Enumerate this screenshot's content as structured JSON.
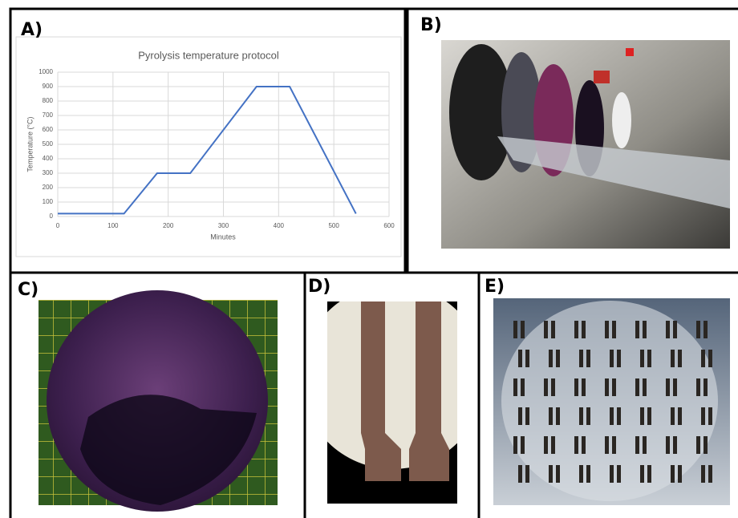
{
  "panels": [
    "A)",
    "B)",
    "C)",
    "D)",
    "E)"
  ],
  "chart_data": {
    "type": "line",
    "title": "Pyrolysis temperature protocol",
    "x_label": "Minutes",
    "y_label": "Temperature (°C)",
    "x": [
      0,
      120,
      180,
      240,
      360,
      420,
      540
    ],
    "series": [
      {
        "color": "#4472c4",
        "values": [
          20,
          20,
          300,
          300,
          900,
          900,
          20
        ]
      }
    ],
    "xlim": [
      0,
      600
    ],
    "xticks": [
      0,
      100,
      200,
      300,
      400,
      500,
      600
    ],
    "ylim": [
      0,
      1000
    ],
    "yticks": [
      0,
      100,
      200,
      300,
      400,
      500,
      600,
      700,
      800,
      900,
      1000
    ],
    "grid": true
  }
}
